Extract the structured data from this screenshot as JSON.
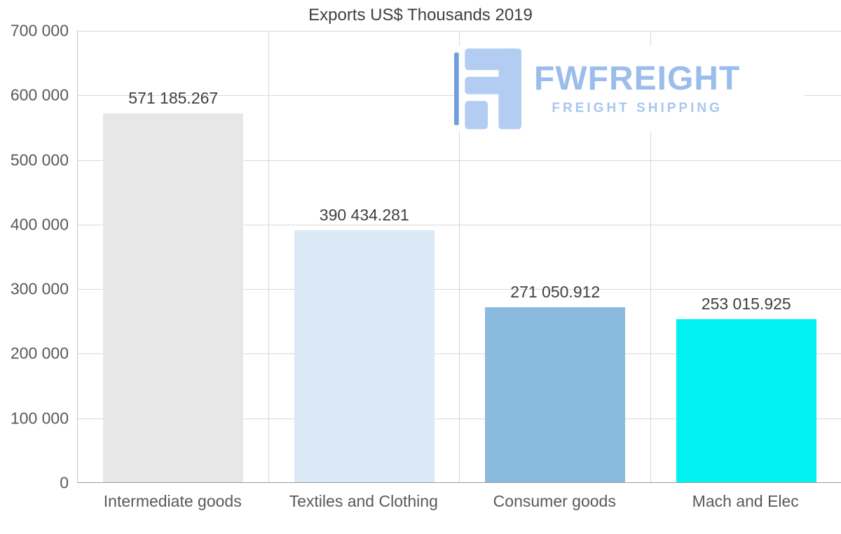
{
  "chart_data": {
    "type": "bar",
    "title": "Exports US$ Thousands 2019",
    "categories": [
      "Intermediate goods",
      "Textiles and Clothing",
      "Consumer goods",
      "Mach and Elec"
    ],
    "values": [
      571185.267,
      390434.281,
      271050.912,
      253015.925
    ],
    "value_labels": [
      "571 185.267",
      "390 434.281",
      "271 050.912",
      "253 015.925"
    ],
    "bar_colors": [
      "#e7e7e7",
      "#dbe9f7",
      "#8abade",
      "#00f2f2"
    ],
    "xlabel": "",
    "ylabel": "",
    "ylim": [
      0,
      700000
    ],
    "ytick_interval": 100000,
    "ytick_labels": [
      "0",
      "100 000",
      "200 000",
      "300 000",
      "400 000",
      "500 000",
      "600 000",
      "700 000"
    ],
    "grid": true,
    "legend": "none",
    "colors": {
      "grid": "#d9d9d9",
      "axis_text": "#595959",
      "value_text": "#404040",
      "title_text": "#3f3f3f"
    }
  },
  "watermark": {
    "brand": "FWFREIGHT",
    "tagline": "FREIGHT SHIPPING",
    "brand_color": "#9bbdeb",
    "tagline_color": "#a9c6ef",
    "icon_main": "#b3cdf2",
    "icon_accent": "#6f9fd8"
  }
}
